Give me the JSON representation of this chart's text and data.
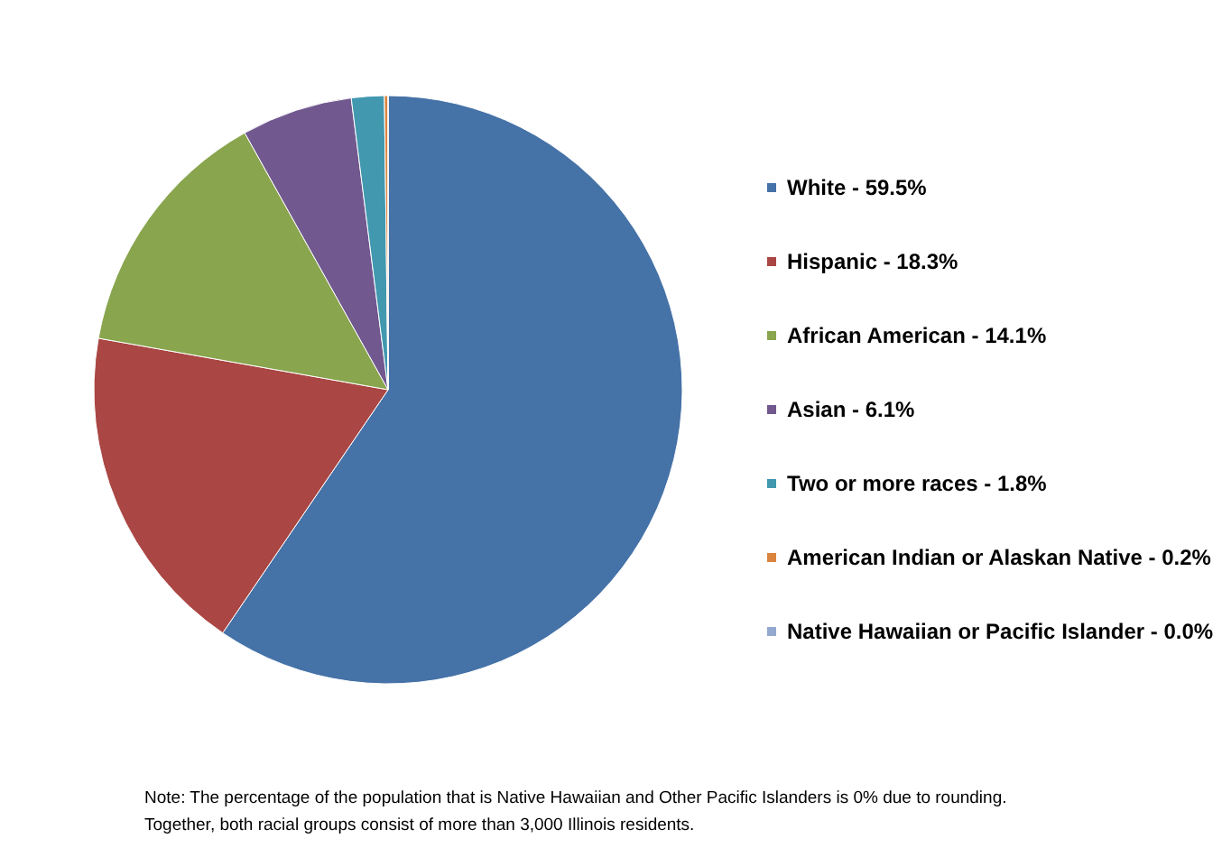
{
  "chart_data": {
    "type": "pie",
    "categories": [
      "White - 59.5%",
      "Hispanic - 18.3%",
      "African American - 14.1%",
      "Asian - 6.1%",
      "Two or more races - 1.8%",
      "American Indian or Alaskan Native - 0.2%",
      "Native Hawaiian or Pacific Islander - 0.0%"
    ],
    "values": [
      59.5,
      18.3,
      14.1,
      6.1,
      1.8,
      0.2,
      0.0
    ],
    "colors": [
      "#4572a7",
      "#aa4643",
      "#89a54e",
      "#71588f",
      "#4198af",
      "#db843d",
      "#93a9cf"
    ],
    "legend": "right",
    "annotations": [
      "Note: The percentage of the population that is Native Hawaiian and Other Pacific Islanders is 0% due to rounding.",
      "Together, both racial groups consist of more than 3,000 Illinois residents."
    ]
  }
}
